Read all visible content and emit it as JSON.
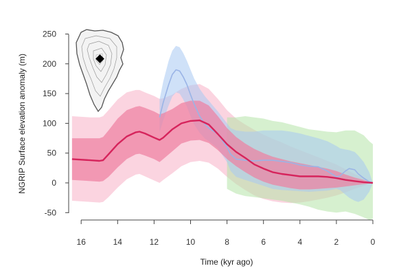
{
  "chart_data": {
    "type": "area",
    "title": "",
    "xlabel": "Time (kyr ago)",
    "ylabel": "NGRIP Surface elevation anomaly (m)",
    "xlim": [
      16.5,
      0
    ],
    "ylim": [
      -50,
      250
    ],
    "x_ticks": [
      16,
      14,
      12,
      10,
      8,
      6,
      4,
      2,
      0
    ],
    "y_ticks": [
      250,
      200,
      150,
      100,
      50,
      0,
      -50
    ],
    "grid": false,
    "legend": "none",
    "inset": "Greenland ice sheet map with NGRIP site marker",
    "colors": {
      "main_line": "#d6245c",
      "main_band_inner": "#ee7fa0",
      "main_band_outer": "#fac6d6",
      "blue_line": "#9ab4e6",
      "blue_band": "#a8c8f2",
      "green_band": "#b5e3a8"
    },
    "series": [
      {
        "x": [
          16.5,
          15.5,
          15,
          14.8,
          14.5,
          14,
          13.5,
          13,
          12.8,
          12.5,
          12,
          11.7,
          11.5,
          11,
          10.5,
          10,
          9.5,
          9,
          8.5,
          8,
          7.5,
          7,
          6.5,
          6,
          5.5,
          5,
          4.5,
          4,
          3.5,
          3,
          2.5,
          2,
          1.5,
          1,
          0.5,
          0
        ],
        "values": [
          40,
          38,
          37,
          38,
          48,
          65,
          78,
          85,
          86,
          83,
          76,
          72,
          76,
          90,
          100,
          104,
          105,
          98,
          82,
          65,
          52,
          42,
          31,
          24,
          18,
          15,
          13,
          11,
          11,
          11,
          10,
          8,
          5,
          3,
          1,
          0
        ],
        "band_inner": {
          "upper": [
            75,
            75,
            75,
            77,
            88,
            108,
            122,
            128,
            129,
            126,
            120,
            115,
            117,
            124,
            134,
            138,
            138,
            130,
            112,
            92,
            77,
            66,
            57,
            50,
            44,
            40,
            36,
            33,
            30,
            27,
            24,
            20,
            14,
            9,
            5,
            0
          ],
          "lower": [
            5,
            3,
            2,
            3,
            10,
            26,
            40,
            48,
            49,
            46,
            40,
            35,
            40,
            53,
            66,
            71,
            72,
            67,
            55,
            40,
            28,
            18,
            9,
            2,
            -3,
            -6,
            -9,
            -11,
            -11,
            -10,
            -9,
            -8,
            -6,
            -4,
            -2,
            0
          ]
        },
        "band_outer": {
          "upper": [
            112,
            110,
            110,
            112,
            122,
            140,
            152,
            156,
            156,
            152,
            146,
            141,
            142,
            148,
            158,
            164,
            166,
            158,
            141,
            122,
            108,
            98,
            89,
            81,
            74,
            68,
            61,
            55,
            49,
            43,
            37,
            31,
            23,
            15,
            8,
            0
          ],
          "lower": [
            -30,
            -32,
            -33,
            -32,
            -24,
            -8,
            6,
            14,
            15,
            11,
            4,
            0,
            5,
            16,
            28,
            35,
            37,
            34,
            24,
            10,
            -2,
            -12,
            -21,
            -27,
            -31,
            -33,
            -34,
            -33,
            -31,
            -28,
            -25,
            -21,
            -16,
            -10,
            -5,
            0
          ]
        }
      },
      {
        "x": [
          11.7,
          11.5,
          11.2,
          11,
          10.8,
          10.6,
          10.4,
          10.2,
          10,
          9.8,
          9.5,
          9.2,
          9,
          8.5,
          8,
          7.8,
          7.5,
          7,
          6.5,
          6,
          5.5,
          5,
          4.5,
          4,
          3.5,
          3,
          2.5,
          2,
          1.8,
          1.5,
          1.3,
          1,
          0.8,
          0.5,
          0.2,
          0
        ],
        "values": [
          110,
          135,
          165,
          182,
          190,
          188,
          178,
          165,
          148,
          132,
          112,
          98,
          92,
          82,
          60,
          48,
          40,
          38,
          37,
          38,
          38,
          36,
          34,
          30,
          28,
          27,
          20,
          10,
          12,
          20,
          24,
          22,
          15,
          8,
          2,
          0
        ],
        "band": {
          "upper": [
            140,
            170,
            205,
            222,
            230,
            228,
            218,
            205,
            190,
            175,
            158,
            145,
            138,
            120,
            100,
            92,
            88,
            86,
            86,
            88,
            88,
            88,
            86,
            83,
            79,
            75,
            70,
            62,
            58,
            56,
            55,
            52,
            46,
            35,
            18,
            0
          ],
          "lower": [
            85,
            105,
            130,
            145,
            152,
            150,
            140,
            128,
            112,
            98,
            84,
            74,
            70,
            58,
            35,
            20,
            10,
            5,
            0,
            -5,
            -10,
            -12,
            -13,
            -14,
            -15,
            -14,
            -13,
            -10,
            -12,
            -20,
            -25,
            -30,
            -32,
            -28,
            -15,
            0
          ]
        }
      },
      {
        "x": [
          8,
          7.5,
          7,
          6.5,
          6,
          5.5,
          5,
          4.5,
          4,
          3.5,
          3,
          2.5,
          2,
          1.5,
          1,
          0.5,
          0.2,
          0
        ],
        "band": {
          "upper": [
            110,
            110,
            112,
            110,
            108,
            104,
            102,
            98,
            94,
            90,
            88,
            86,
            85,
            88,
            88,
            80,
            70,
            65
          ],
          "lower": [
            -10,
            -18,
            -22,
            -24,
            -26,
            -28,
            -30,
            -33,
            -36,
            -40,
            -45,
            -48,
            -50,
            -48,
            -52,
            -58,
            -62,
            -60
          ]
        }
      }
    ]
  }
}
